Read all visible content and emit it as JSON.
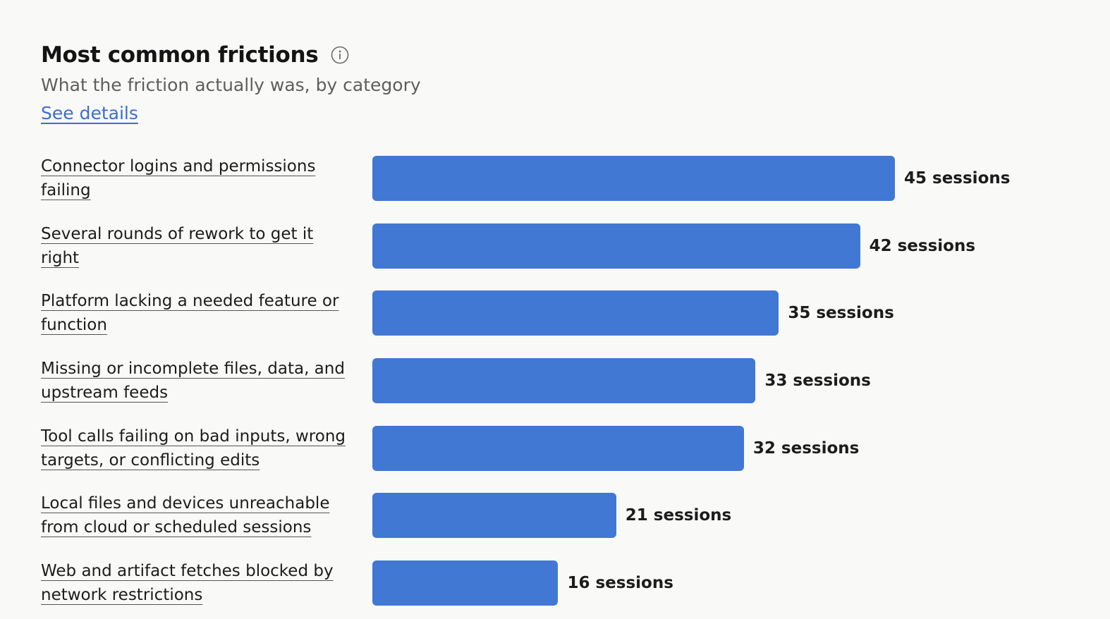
{
  "header": {
    "title": "Most common frictions",
    "subtitle": "What the friction actually was, by category",
    "details_link": "See details",
    "info_icon": "info-circle-icon"
  },
  "colors": {
    "bar": "#4178d4",
    "link": "#3a6fd0"
  },
  "chart_data": {
    "type": "bar",
    "orientation": "horizontal",
    "title": "Most common frictions",
    "subtitle": "What the friction actually was, by category",
    "categories": [
      "Connector logins and permissions failing",
      "Several rounds of rework to get it right",
      "Platform lacking a needed feature or function",
      "Missing or incomplete files, data, and upstream feeds",
      "Tool calls failing on bad inputs, wrong targets, or conflicting edits",
      "Local files and devices unreachable from cloud or scheduled sessions",
      "Web and artifact fetches blocked by network restrictions"
    ],
    "values": [
      45,
      42,
      35,
      33,
      32,
      21,
      16
    ],
    "value_labels": [
      "45 sessions",
      "42 sessions",
      "35 sessions",
      "33 sessions",
      "32 sessions",
      "21 sessions",
      "16 sessions"
    ],
    "unit": "sessions",
    "grid": false
  }
}
